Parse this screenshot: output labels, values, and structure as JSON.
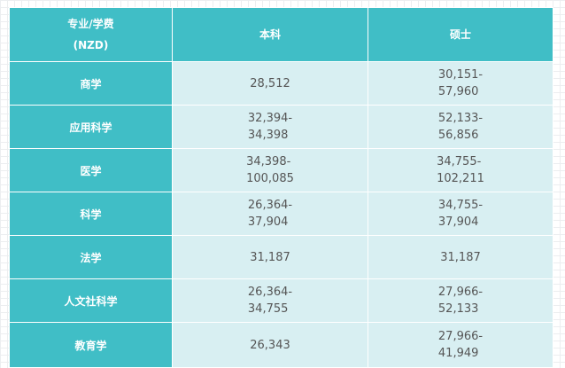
{
  "table": {
    "header": {
      "col1_line1": "专业/学费",
      "col1_line2": "(NZD)",
      "col2": "本科",
      "col3": "硕士"
    },
    "rows": [
      {
        "major": "商学",
        "bachelor": "28,512",
        "master": "30,151-\n57,960"
      },
      {
        "major": "应用科学",
        "bachelor": "32,394-\n34,398",
        "master": "52,133-\n56,856"
      },
      {
        "major": "医学",
        "bachelor": "34,398-\n100,085",
        "master": "34,755-\n102,211"
      },
      {
        "major": "科学",
        "bachelor": "26,364-\n37,904",
        "master": "34,755-\n37,904"
      },
      {
        "major": "法学",
        "bachelor": "31,187",
        "master": "31,187"
      },
      {
        "major": "人文社科学",
        "bachelor": "26,364-\n34,755",
        "master": "27,966-\n52,133"
      },
      {
        "major": "教育学",
        "bachelor": "26,343",
        "master": "27,966-\n41,949"
      }
    ]
  },
  "colors": {
    "header_bg": "#40bec6",
    "cell_bg": "#d8eff2",
    "text_dark": "#555555"
  }
}
